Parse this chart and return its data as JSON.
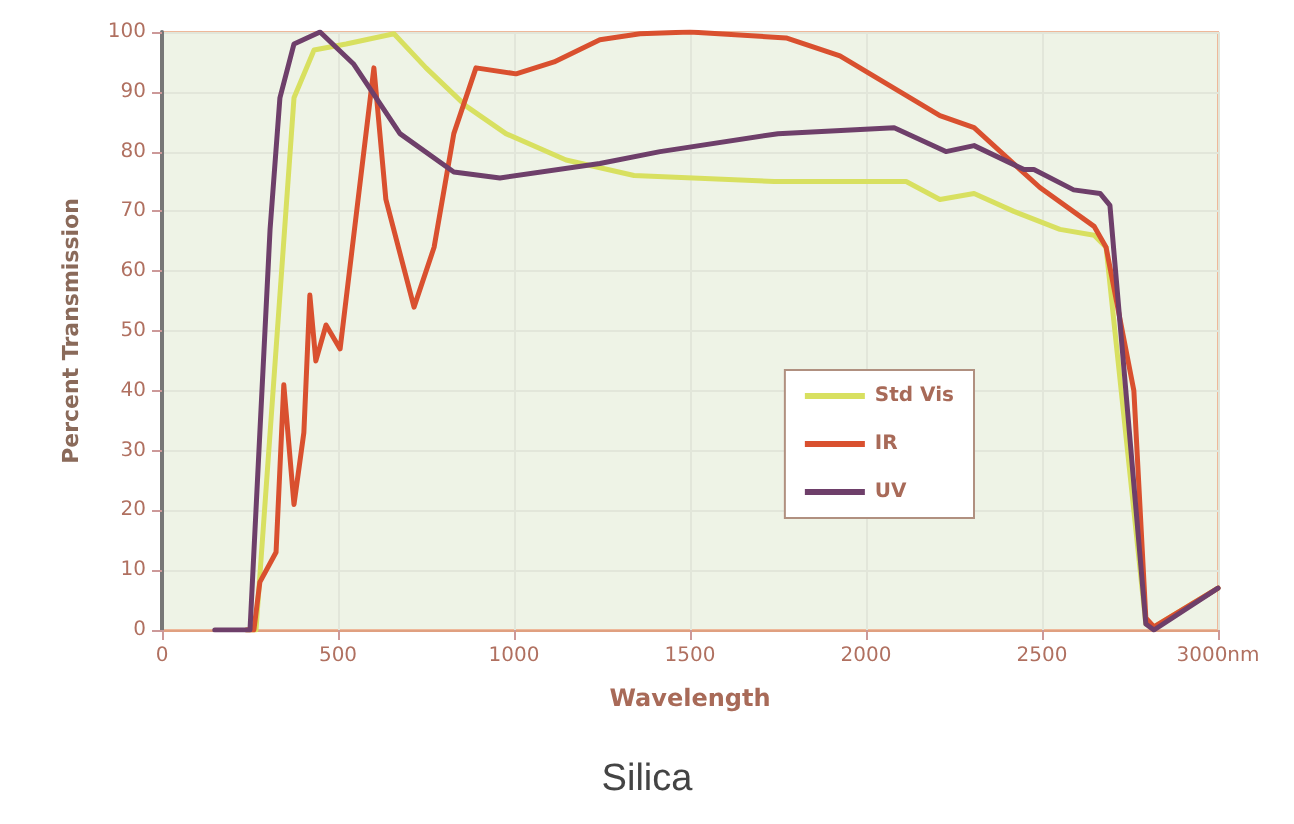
{
  "chart_data": {
    "type": "line",
    "title": "Silica",
    "xlabel": "Wavelength",
    "ylabel": "Percent Transmission",
    "xlim": [
      0,
      3000
    ],
    "xticks": [
      0,
      500,
      1000,
      1500,
      2000,
      2500,
      {
        "value": 3000,
        "label": "3000nm"
      }
    ],
    "ylim": [
      0,
      100
    ],
    "yticks": [
      0,
      10,
      20,
      30,
      40,
      50,
      60,
      70,
      80,
      90,
      100
    ],
    "grid": true,
    "legend": "right",
    "marker": "none",
    "line_style": "solid",
    "series": [
      {
        "name": "Std Vis",
        "color": "#d8e060",
        "x": [
          240,
          267,
          318,
          375,
          432,
          523,
          659,
          750,
          864,
          977,
          1148,
          1341,
          1739,
          2114,
          2210,
          2307,
          2420,
          2551,
          2648,
          2682,
          2795,
          2818,
          3000
        ],
        "values": [
          0,
          0,
          42,
          89,
          97,
          98,
          99.7,
          94,
          87.6,
          83,
          78.6,
          76,
          75,
          75,
          72,
          73,
          70,
          67,
          66,
          64,
          1,
          0.5,
          7
        ]
      },
      {
        "name": "IR",
        "color": "#d9502f",
        "x": [
          240,
          261,
          278,
          324,
          346,
          375,
          403,
          420,
          437,
          466,
          506,
          602,
          636,
          716,
          773,
          829,
          892,
          1006,
          1114,
          1244,
          1358,
          1500,
          1773,
          1926,
          2210,
          2307,
          2494,
          2648,
          2682,
          2761,
          2795,
          2818,
          3000
        ],
        "values": [
          0,
          0,
          8,
          13,
          41,
          21,
          33,
          56,
          45,
          51,
          47,
          94,
          72,
          54,
          64,
          83,
          94,
          93,
          95,
          98.7,
          99.7,
          100,
          99,
          96,
          86,
          84,
          74,
          67.5,
          64,
          40,
          2,
          0.5,
          7
        ]
      },
      {
        "name": "UV",
        "color": "#6e3f6a",
        "x": [
          150,
          250,
          278,
          307,
          335,
          375,
          449,
          545,
          676,
          829,
          960,
          1244,
          1415,
          1750,
          2080,
          2227,
          2307,
          2449,
          2477,
          2590,
          2665,
          2693,
          2795,
          2818,
          3000
        ],
        "values": [
          0,
          0,
          33,
          67,
          89,
          98,
          100,
          94.6,
          83,
          76.6,
          75.6,
          78,
          80,
          83,
          84,
          80,
          81,
          77,
          77,
          73.6,
          73,
          71,
          1,
          0,
          7
        ]
      }
    ]
  }
}
